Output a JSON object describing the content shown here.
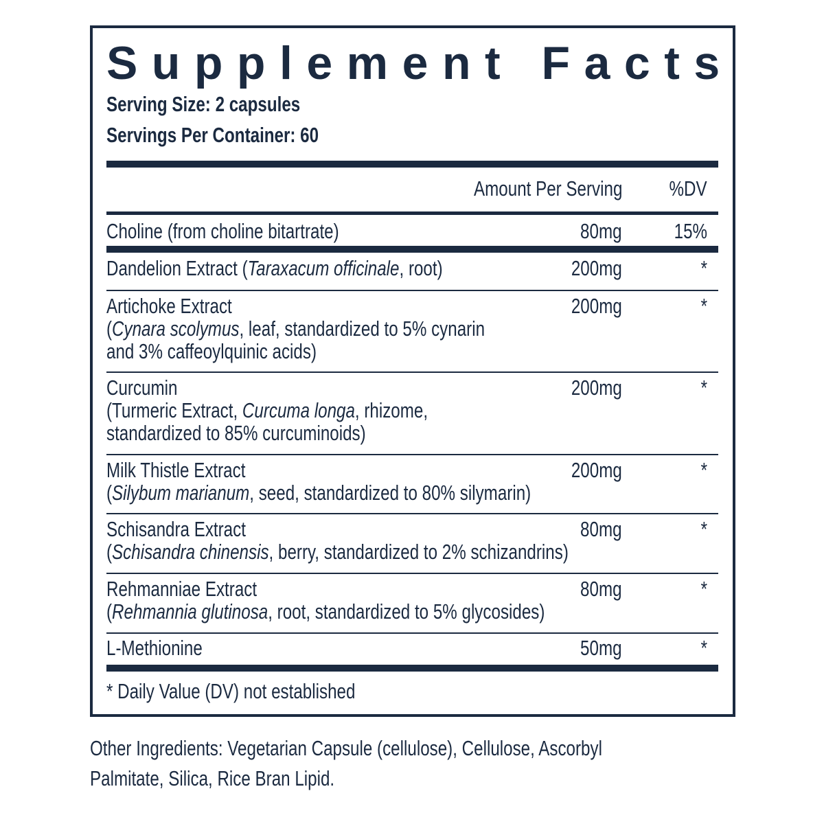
{
  "title": "Supplement Facts",
  "serving_size": "Serving Size: 2 capsules",
  "servings_per_container": "Servings Per Container: 60",
  "header": {
    "amount": "Amount Per Serving",
    "dv": "%DV"
  },
  "rows": [
    {
      "lines": [
        [
          {
            "text": "Choline (from choline bitartrate)"
          }
        ]
      ],
      "amount": "80mg",
      "dv": "15%"
    },
    {
      "lines": [
        [
          {
            "text": "Dandelion Extract ("
          },
          {
            "text": "Taraxacum officinale",
            "italic": true
          },
          {
            "text": ", root)"
          }
        ]
      ],
      "amount": "200mg",
      "dv": "*"
    },
    {
      "lines": [
        [
          {
            "text": "Artichoke Extract"
          }
        ],
        [
          {
            "text": "("
          },
          {
            "text": "Cynara scolymus",
            "italic": true
          },
          {
            "text": ", leaf, standardized to 5% cynarin"
          }
        ],
        [
          {
            "text": "and 3% caffeoylquinic acids)"
          }
        ]
      ],
      "amount": "200mg",
      "dv": "*"
    },
    {
      "lines": [
        [
          {
            "text": "Curcumin"
          }
        ],
        [
          {
            "text": "(Turmeric Extract, "
          },
          {
            "text": "Curcuma longa",
            "italic": true
          },
          {
            "text": ", rhizome,"
          }
        ],
        [
          {
            "text": "standardized to 85% curcuminoids)"
          }
        ]
      ],
      "amount": "200mg",
      "dv": "*"
    },
    {
      "lines": [
        [
          {
            "text": "Milk Thistle Extract"
          }
        ],
        [
          {
            "text": "("
          },
          {
            "text": "Silybum marianum",
            "italic": true
          },
          {
            "text": ", seed, standardized to 80% silymarin)"
          }
        ]
      ],
      "amount": "200mg",
      "dv": "*"
    },
    {
      "lines": [
        [
          {
            "text": "Schisandra Extract"
          }
        ],
        [
          {
            "text": "("
          },
          {
            "text": "Schisandra chinensis",
            "italic": true
          },
          {
            "text": ", berry, standardized to 2% schizandrins)"
          }
        ]
      ],
      "amount": "80mg",
      "dv": "*"
    },
    {
      "lines": [
        [
          {
            "text": "Rehmanniae Extract"
          }
        ],
        [
          {
            "text": "("
          },
          {
            "text": "Rehmannia glutinosa",
            "italic": true
          },
          {
            "text": ", root, standardized to 5% glycosides)"
          }
        ]
      ],
      "amount": "80mg",
      "dv": "*"
    },
    {
      "lines": [
        [
          {
            "text": "L-Methionine"
          }
        ]
      ],
      "amount": "50mg",
      "dv": "*"
    }
  ],
  "footnote": "* Daily Value (DV) not established",
  "other_ingredients": [
    "Other Ingredients: Vegetarian Capsule (cellulose), Cellulose, Ascorbyl",
    "Palmitate, Silica, Rice Bran Lipid."
  ]
}
